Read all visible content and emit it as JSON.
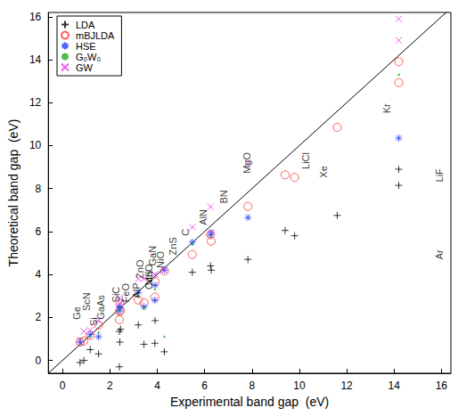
{
  "chart_data": {
    "type": "scatter",
    "x_label": "Experimental band gap  (eV)",
    "y_label": "Theoretical band gap  (eV)",
    "xlim": [
      -0.6,
      16.4
    ],
    "ylim": [
      -0.6,
      16.2
    ],
    "xticks": [
      0,
      2,
      4,
      6,
      8,
      10,
      12,
      14,
      16
    ],
    "yticks": [
      0,
      2,
      4,
      6,
      8,
      10,
      12,
      14,
      16
    ],
    "grid": false,
    "legend": "upper left",
    "series": [
      {
        "name": "LDA",
        "color": "#000000",
        "marker": "plus",
        "x": [
          0.74,
          0.9,
          1.17,
          1.52,
          2.4,
          2.4,
          2.45,
          2.42,
          3.44,
          3.2,
          3.9,
          4.3,
          3.91,
          5.48,
          6.28,
          6.25,
          7.83,
          9.4,
          9.8,
          11.6,
          14.2,
          14.2
        ],
        "values": [
          -0.1,
          0.0,
          0.5,
          0.3,
          1.35,
          -0.3,
          1.45,
          0.85,
          0.75,
          1.65,
          0.8,
          0.4,
          1.85,
          4.1,
          4.2,
          4.4,
          4.7,
          6.05,
          5.8,
          6.75,
          8.9,
          8.15
        ]
      },
      {
        "name": "mBJLDA",
        "color": "#ff3333",
        "marker": "circle",
        "x": [
          0.74,
          0.9,
          1.17,
          1.52,
          2.4,
          2.4,
          2.45,
          2.42,
          3.44,
          3.2,
          3.9,
          4.3,
          3.91,
          5.48,
          6.28,
          6.25,
          7.83,
          9.4,
          9.8,
          11.6,
          14.2,
          14.2
        ],
        "values": [
          0.85,
          0.9,
          1.17,
          1.64,
          2.28,
          1.9,
          2.32,
          2.66,
          2.68,
          2.81,
          2.95,
          4.16,
          3.66,
          4.93,
          5.55,
          5.85,
          7.17,
          8.64,
          8.52,
          10.85,
          12.94,
          13.91
        ]
      },
      {
        "name": "HSE",
        "color": "#1f3fff",
        "marker": "asterisk",
        "x": [
          0.74,
          1.17,
          1.52,
          2.4,
          2.4,
          2.45,
          3.44,
          3.2,
          3.9,
          4.3,
          3.91,
          5.48,
          6.28,
          6.25,
          7.83,
          14.2
        ],
        "values": [
          0.85,
          1.2,
          1.1,
          2.3,
          2.5,
          2.45,
          2.5,
          3.15,
          2.8,
          4.2,
          3.5,
          5.5,
          5.95,
          5.85,
          6.65,
          10.35
        ]
      },
      {
        "name": "G₀W₀",
        "color": "#22aa22",
        "marker": "dot",
        "x": [
          0.74,
          1.17,
          1.52,
          2.4,
          2.45,
          3.44,
          3.2,
          3.9,
          4.3,
          5.48,
          6.28,
          14.2
        ],
        "values": [
          1.0,
          1.1,
          1.3,
          2.3,
          2.5,
          2.4,
          3.0,
          3.3,
          1.1,
          5.4,
          5.8,
          13.3
        ]
      },
      {
        "name": "GW",
        "color": "#ee33ee",
        "marker": "x",
        "x": [
          0.74,
          0.9,
          1.17,
          1.52,
          2.4,
          2.4,
          2.45,
          3.44,
          3.2,
          3.9,
          4.3,
          3.91,
          5.48,
          6.28,
          6.25,
          7.83,
          14.2,
          14.2
        ],
        "values": [
          0.95,
          1.35,
          1.4,
          1.85,
          2.6,
          2.9,
          2.7,
          3.8,
          3.8,
          4.0,
          4.2,
          4.0,
          6.2,
          5.95,
          7.15,
          9.2,
          15.9,
          14.9
        ]
      }
    ],
    "diagonal": {
      "x": [
        -0.6,
        16.4
      ],
      "y": [
        -0.6,
        16.4
      ]
    },
    "annotations": [
      {
        "text": "Ge",
        "x": 0.6,
        "y": 1.9
      },
      {
        "text": "ScN",
        "x": 1.0,
        "y": 2.3
      },
      {
        "text": "Si",
        "x": 1.3,
        "y": 1.6
      },
      {
        "text": "GaAs",
        "x": 1.6,
        "y": 1.9
      },
      {
        "text": "SiC",
        "x": 2.25,
        "y": 2.7
      },
      {
        "text": "FeO",
        "x": 2.65,
        "y": 2.7
      },
      {
        "text": "AlP",
        "x": 3.1,
        "y": 2.9
      },
      {
        "text": "CdS",
        "x": 3.65,
        "y": 3.3
      },
      {
        "text": "ZnO",
        "x": 3.25,
        "y": 3.8
      },
      {
        "text": "GaN",
        "x": 3.8,
        "y": 4.4
      },
      {
        "text": "MnO",
        "x": 3.65,
        "y": 3.5
      },
      {
        "text": "NiO",
        "x": 4.15,
        "y": 4.3
      },
      {
        "text": "ZnS",
        "x": 4.65,
        "y": 4.9
      },
      {
        "text": "C",
        "x": 5.2,
        "y": 5.8
      },
      {
        "text": "AlN",
        "x": 5.95,
        "y": 6.3
      },
      {
        "text": "BN",
        "x": 6.8,
        "y": 7.3
      },
      {
        "text": "MgO",
        "x": 7.8,
        "y": 8.7
      },
      {
        "text": "LiCl",
        "x": 10.25,
        "y": 8.9
      },
      {
        "text": "Xe",
        "x": 11.0,
        "y": 8.5
      },
      {
        "text": "Kr",
        "x": 13.7,
        "y": 11.5
      },
      {
        "text": "LiF",
        "x": 15.9,
        "y": 8.3
      },
      {
        "text": "Ar",
        "x": 15.9,
        "y": 4.7
      }
    ]
  }
}
